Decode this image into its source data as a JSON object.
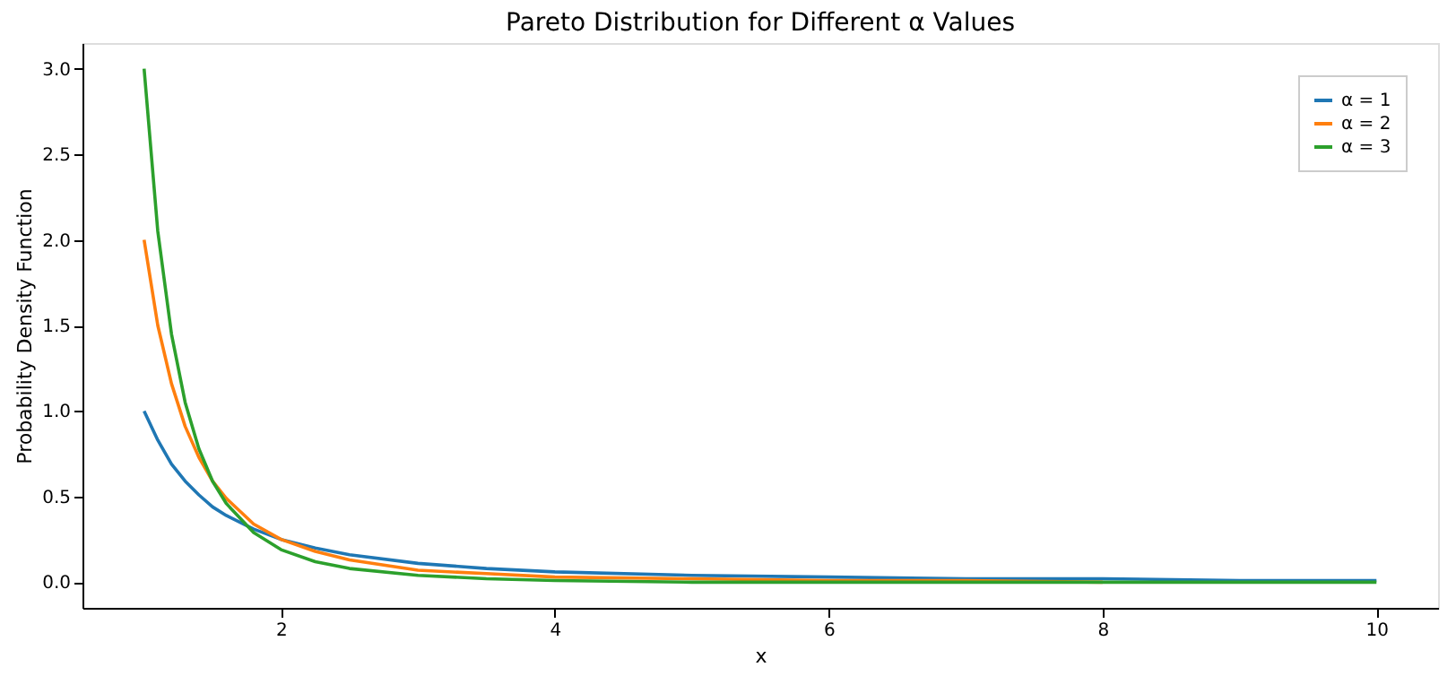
{
  "chart_data": {
    "type": "line",
    "title": "Pareto Distribution for Different α Values",
    "xlabel": "x",
    "ylabel": "Probability Density Function",
    "x": [
      1,
      1.1,
      1.2,
      1.3,
      1.4,
      1.5,
      1.6,
      1.8,
      2,
      2.25,
      2.5,
      3,
      3.5,
      4,
      5,
      6,
      7,
      8,
      9,
      10
    ],
    "series": [
      {
        "name": "α = 1",
        "color": "#1f77b4",
        "values": [
          1.0,
          0.83,
          0.69,
          0.59,
          0.51,
          0.44,
          0.39,
          0.31,
          0.25,
          0.2,
          0.16,
          0.11,
          0.08,
          0.06,
          0.04,
          0.03,
          0.02,
          0.02,
          0.01,
          0.01
        ]
      },
      {
        "name": "α = 2",
        "color": "#ff7f0e",
        "values": [
          2.0,
          1.5,
          1.16,
          0.91,
          0.73,
          0.59,
          0.49,
          0.34,
          0.25,
          0.18,
          0.13,
          0.07,
          0.05,
          0.03,
          0.02,
          0.01,
          0.01,
          0.0,
          null,
          null
        ]
      },
      {
        "name": "α = 3",
        "color": "#2ca02c",
        "values": [
          3.0,
          2.05,
          1.45,
          1.05,
          0.78,
          0.59,
          0.46,
          0.29,
          0.19,
          0.12,
          0.08,
          0.04,
          0.02,
          0.01,
          0.0,
          0.0,
          0.0,
          0.0,
          0.0,
          0.0
        ]
      }
    ],
    "xlim": [
      0.55,
      10.45
    ],
    "xticks": [
      2,
      4,
      6,
      8,
      10
    ],
    "ylim": [
      -0.15,
      3.15
    ],
    "yticks": [
      {
        "value": 0,
        "label": "0.0"
      },
      0.5,
      {
        "value": 1,
        "label": "1.0"
      },
      1.5,
      {
        "value": 2,
        "label": "2.0"
      },
      2.5,
      {
        "value": 3,
        "label": "3.0"
      }
    ],
    "grid": false,
    "legend": "top right",
    "marker": "none",
    "line_style": "solid"
  }
}
